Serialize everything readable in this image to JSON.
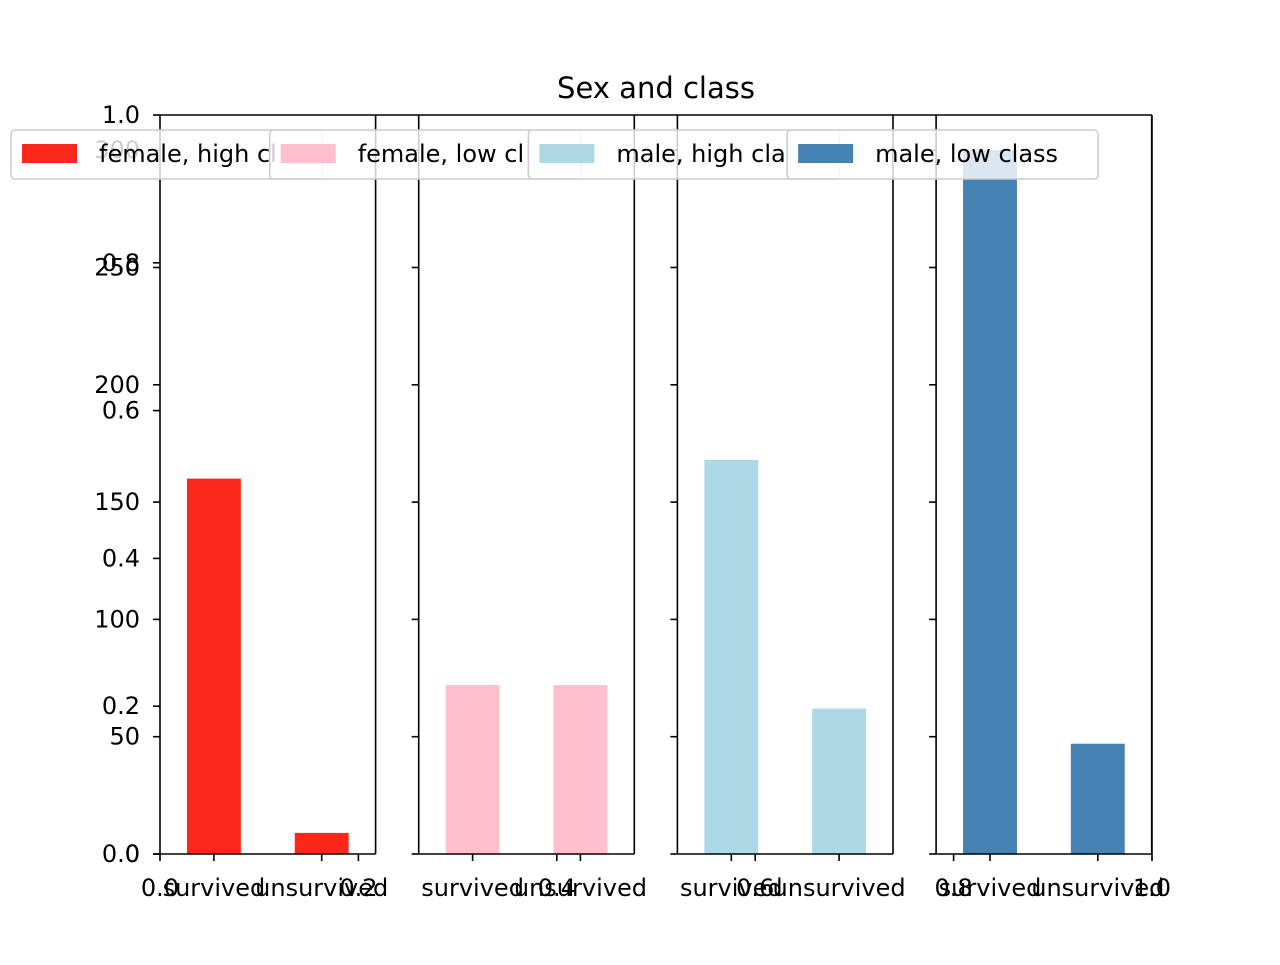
{
  "chart_data": {
    "type": "bar",
    "title": "Sex and class",
    "xlabel": "",
    "ylabel": "",
    "shared_ylim": [
      0,
      315
    ],
    "shared_yticks": [
      0,
      50,
      100,
      150,
      200,
      250,
      300
    ],
    "overlay_axis": {
      "xlim": [
        0,
        1
      ],
      "ylim": [
        0,
        1
      ],
      "xticks": [
        "0.0",
        "0.2",
        "0.4",
        "0.6",
        "0.8",
        "1.0"
      ],
      "yticks": [
        "0.0",
        "0.2",
        "0.4",
        "0.6",
        "0.8",
        "1.0"
      ]
    },
    "categories": [
      "survived",
      "unsurvived"
    ],
    "grid": false,
    "legend_placement": "top",
    "series": [
      {
        "name": "female, high class",
        "legend_visible_text": "female, high cl",
        "color": "#fc271b",
        "values": [
          160,
          9
        ]
      },
      {
        "name": "female, low class",
        "legend_visible_text": "female, low cl",
        "color": "#ffc0cb",
        "values": [
          72,
          72
        ]
      },
      {
        "name": "male, high class",
        "legend_visible_text": "male, high cla",
        "color": "#add8e6",
        "values": [
          168,
          62
        ]
      },
      {
        "name": "male, low class",
        "legend_visible_text": "male, low class",
        "color": "#4682b4",
        "values": [
          300,
          47
        ]
      }
    ]
  }
}
